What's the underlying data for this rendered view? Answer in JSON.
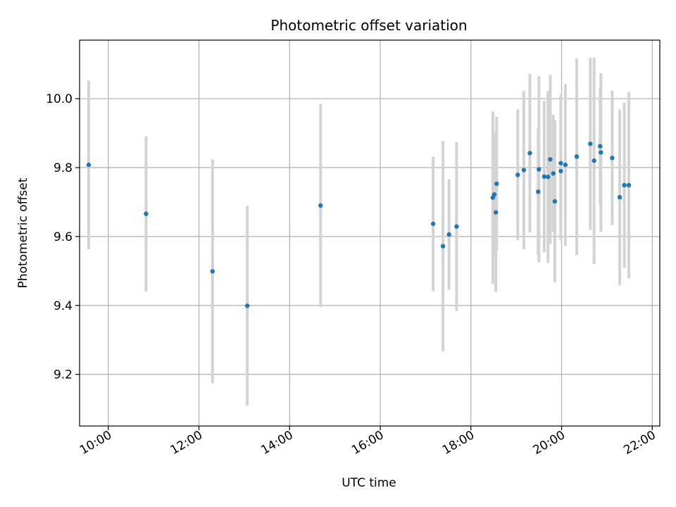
{
  "chart_data": {
    "type": "scatter",
    "title": "Photometric offset variation",
    "xlabel": "UTC time",
    "ylabel": "Photometric offset",
    "xlim": [
      "09:22",
      "22:10"
    ],
    "ylim": [
      9.05,
      10.17
    ],
    "x_ticks": [
      "10:00",
      "12:00",
      "14:00",
      "16:00",
      "18:00",
      "20:00",
      "22:00"
    ],
    "y_ticks": [
      "9.2",
      "9.4",
      "9.6",
      "9.8",
      "10.0"
    ],
    "grid": true,
    "point_color": "#1f77b4",
    "errorbar_color": "#d3d3d3",
    "points": [
      {
        "x": "09:34",
        "y": 9.808,
        "err": 0.245
      },
      {
        "x": "10:50",
        "y": 9.666,
        "err": 0.225
      },
      {
        "x": "12:18",
        "y": 9.499,
        "err": 0.325
      },
      {
        "x": "13:04",
        "y": 9.399,
        "err": 0.29
      },
      {
        "x": "14:41",
        "y": 9.69,
        "err": 0.295
      },
      {
        "x": "17:10",
        "y": 9.637,
        "err": 0.195
      },
      {
        "x": "17:23",
        "y": 9.572,
        "err": 0.305
      },
      {
        "x": "17:31",
        "y": 9.606,
        "err": 0.16
      },
      {
        "x": "17:41",
        "y": 9.629,
        "err": 0.245
      },
      {
        "x": "18:29",
        "y": 9.713,
        "err": 0.25
      },
      {
        "x": "18:31",
        "y": 9.722,
        "err": 0.18
      },
      {
        "x": "18:33",
        "y": 9.67,
        "err": 0.23
      },
      {
        "x": "18:34",
        "y": 9.753,
        "err": 0.195
      },
      {
        "x": "19:02",
        "y": 9.779,
        "err": 0.19
      },
      {
        "x": "19:10",
        "y": 9.793,
        "err": 0.23
      },
      {
        "x": "19:18",
        "y": 9.842,
        "err": 0.23
      },
      {
        "x": "19:29",
        "y": 9.73,
        "err": 0.185
      },
      {
        "x": "19:30",
        "y": 9.795,
        "err": 0.27
      },
      {
        "x": "19:37",
        "y": 9.774,
        "err": 0.22
      },
      {
        "x": "19:42",
        "y": 9.773,
        "err": 0.25
      },
      {
        "x": "19:45",
        "y": 9.824,
        "err": 0.245
      },
      {
        "x": "19:49",
        "y": 9.783,
        "err": 0.17
      },
      {
        "x": "19:51",
        "y": 9.702,
        "err": 0.235
      },
      {
        "x": "19:59",
        "y": 9.813,
        "err": 0.2
      },
      {
        "x": "19:59",
        "y": 9.79,
        "err": 0.2
      },
      {
        "x": "20:05",
        "y": 9.808,
        "err": 0.235
      },
      {
        "x": "20:20",
        "y": 9.832,
        "err": 0.285
      },
      {
        "x": "20:38",
        "y": 9.869,
        "err": 0.25
      },
      {
        "x": "20:43",
        "y": 9.82,
        "err": 0.3
      },
      {
        "x": "20:51",
        "y": 9.862,
        "err": 0.17
      },
      {
        "x": "20:52",
        "y": 9.844,
        "err": 0.23
      },
      {
        "x": "21:07",
        "y": 9.828,
        "err": 0.195
      },
      {
        "x": "21:17",
        "y": 9.714,
        "err": 0.255
      },
      {
        "x": "21:23",
        "y": 9.749,
        "err": 0.24
      },
      {
        "x": "21:29",
        "y": 9.749,
        "err": 0.27
      }
    ]
  }
}
